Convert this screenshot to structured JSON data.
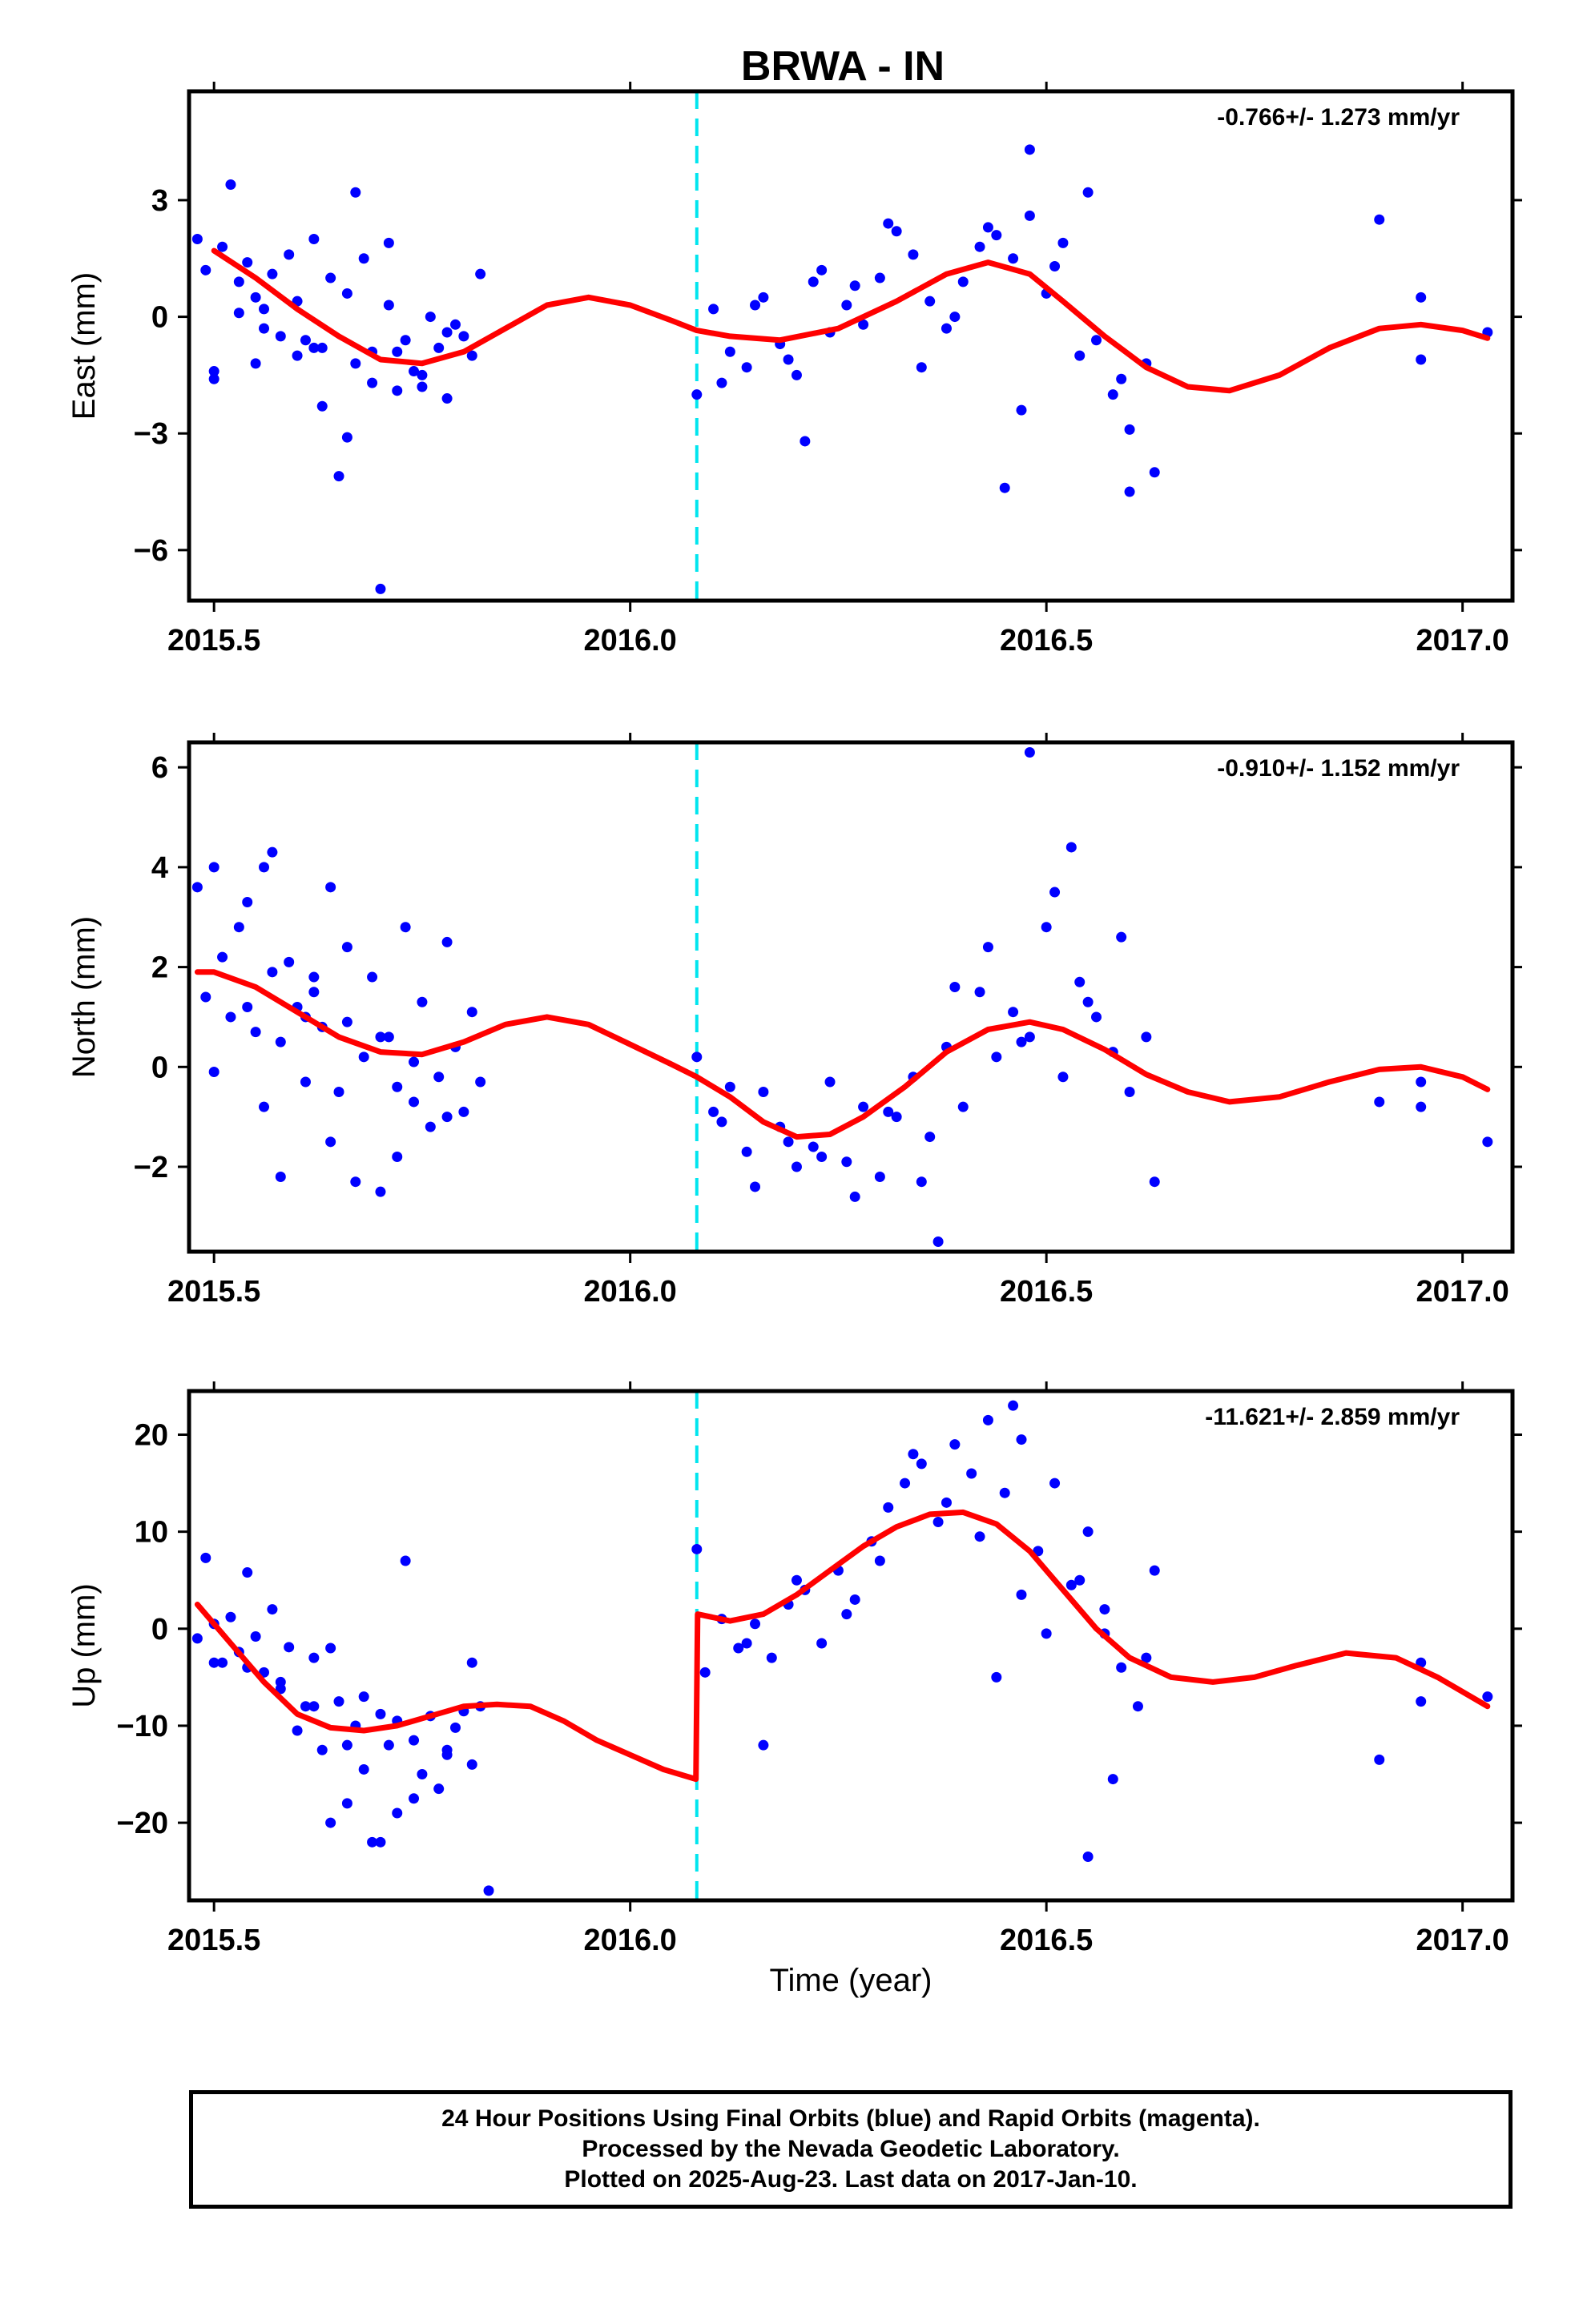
{
  "chart_data": {
    "type": "scatter",
    "title": "BRWA - IN",
    "xlabel": "Time (year)",
    "xlim": [
      2015.47,
      2017.06
    ],
    "x_ticks": [
      2015.5,
      2016.0,
      2016.5,
      2017.0
    ],
    "x_tick_labels": [
      "2015.5",
      "2016.0",
      "2016.5",
      "2017.0"
    ],
    "offset_epoch": 2016.08,
    "colors": {
      "data": "#0000ff",
      "model": "#ff0000",
      "offset": "#00e5ee"
    },
    "panels": [
      {
        "ylabel": "East (mm)",
        "ylim": [
          -7.3,
          5.8
        ],
        "y_ticks": [
          3,
          0,
          -3,
          -6
        ],
        "y_tick_labels": [
          "3",
          "0",
          "−3",
          "−6"
        ],
        "rate": "-0.766+/- 1.273 mm/yr",
        "model": {
          "x": [
            2015.5,
            2015.55,
            2015.6,
            2015.65,
            2015.7,
            2015.75,
            2015.8,
            2015.85,
            2015.9,
            2015.95,
            2016.0,
            2016.05,
            2016.08,
            2016.12,
            2016.18,
            2016.25,
            2016.32,
            2016.38,
            2016.43,
            2016.48,
            2016.52,
            2016.57,
            2016.62,
            2016.67,
            2016.72,
            2016.78,
            2016.84,
            2016.9,
            2016.95,
            2017.0,
            2017.03
          ],
          "y": [
            1.7,
            1.0,
            0.2,
            -0.5,
            -1.1,
            -1.2,
            -0.9,
            -0.3,
            0.3,
            0.5,
            0.3,
            -0.1,
            -0.35,
            -0.5,
            -0.6,
            -0.3,
            0.4,
            1.1,
            1.4,
            1.1,
            0.4,
            -0.5,
            -1.3,
            -1.8,
            -1.9,
            -1.5,
            -0.8,
            -0.3,
            -0.2,
            -0.35,
            -0.55
          ]
        },
        "points": {
          "x": [
            2015.48,
            2015.49,
            2015.5,
            2015.51,
            2015.52,
            2015.53,
            2015.54,
            2015.55,
            2015.56,
            2015.57,
            2015.58,
            2015.59,
            2015.6,
            2015.61,
            2015.62,
            2015.63,
            2015.64,
            2015.65,
            2015.66,
            2015.67,
            2015.68,
            2015.69,
            2015.7,
            2015.71,
            2015.72,
            2015.73,
            2015.74,
            2015.75,
            2015.76,
            2015.77,
            2015.78,
            2015.79,
            2015.8,
            2015.81,
            2015.82,
            2015.5,
            2015.53,
            2015.56,
            2015.6,
            2015.63,
            2015.66,
            2015.69,
            2015.72,
            2015.75,
            2015.78,
            2015.55,
            2015.62,
            2015.67,
            2015.71,
            2016.08,
            2016.1,
            2016.12,
            2016.14,
            2016.16,
            2016.18,
            2016.2,
            2016.22,
            2016.24,
            2016.26,
            2016.28,
            2016.3,
            2016.32,
            2016.34,
            2016.36,
            2016.38,
            2016.4,
            2016.42,
            2016.44,
            2016.46,
            2016.48,
            2016.5,
            2016.52,
            2016.54,
            2016.56,
            2016.58,
            2016.6,
            2016.62,
            2016.11,
            2016.15,
            2016.19,
            2016.23,
            2016.27,
            2016.31,
            2016.35,
            2016.39,
            2016.43,
            2016.47,
            2016.51,
            2016.55,
            2016.59,
            2016.63,
            2016.21,
            2016.45,
            2016.48,
            2016.6,
            2016.9,
            2016.95,
            2016.95,
            2017.03
          ],
          "y": [
            2.0,
            1.2,
            -1.6,
            1.8,
            3.4,
            0.9,
            1.4,
            -1.2,
            0.2,
            1.1,
            -0.5,
            1.6,
            0.4,
            -0.6,
            2.0,
            -0.8,
            1.0,
            -4.1,
            0.6,
            -1.2,
            1.5,
            -0.9,
            -7.0,
            0.3,
            -1.9,
            -0.6,
            -1.4,
            -1.8,
            0.0,
            -0.8,
            -2.1,
            -0.2,
            -0.5,
            -1.0,
            1.1,
            -1.4,
            0.1,
            -0.3,
            -1.0,
            -2.3,
            -3.1,
            -1.7,
            -0.9,
            -1.5,
            -0.4,
            0.5,
            -0.8,
            3.2,
            1.9,
            -2.0,
            0.2,
            -0.9,
            -1.3,
            0.5,
            -0.7,
            -1.5,
            0.9,
            -0.4,
            0.3,
            -0.2,
            1.0,
            2.2,
            1.6,
            0.4,
            -0.3,
            0.9,
            1.8,
            2.1,
            1.5,
            2.6,
            0.6,
            1.9,
            -1.0,
            -0.6,
            -2.0,
            -2.9,
            -1.2,
            -1.7,
            0.3,
            -1.1,
            1.2,
            0.8,
            2.4,
            -1.3,
            0.0,
            2.3,
            -2.4,
            1.3,
            3.2,
            -1.6,
            -4.0,
            -3.2,
            -4.4,
            4.3,
            -4.5,
            2.5,
            0.5,
            -1.1,
            -0.4
          ]
        }
      },
      {
        "ylabel": "North (mm)",
        "ylim": [
          -3.7,
          6.5
        ],
        "y_ticks": [
          6,
          4,
          2,
          0,
          -2
        ],
        "y_tick_labels": [
          "6",
          "4",
          "2",
          "0",
          "−2"
        ],
        "rate": "-0.910+/- 1.152 mm/yr",
        "model": {
          "x": [
            2015.48,
            2015.5,
            2015.55,
            2015.6,
            2015.65,
            2015.7,
            2015.75,
            2015.8,
            2015.85,
            2015.9,
            2015.95,
            2016.0,
            2016.05,
            2016.08,
            2016.12,
            2016.16,
            2016.2,
            2016.24,
            2016.28,
            2016.33,
            2016.38,
            2016.43,
            2016.48,
            2016.52,
            2016.57,
            2016.62,
            2016.67,
            2016.72,
            2016.78,
            2016.84,
            2016.9,
            2016.95,
            2017.0,
            2017.03
          ],
          "y": [
            1.9,
            1.9,
            1.6,
            1.1,
            0.6,
            0.3,
            0.25,
            0.5,
            0.85,
            1.0,
            0.85,
            0.45,
            0.05,
            -0.2,
            -0.6,
            -1.1,
            -1.4,
            -1.35,
            -1.0,
            -0.4,
            0.3,
            0.75,
            0.9,
            0.75,
            0.35,
            -0.15,
            -0.5,
            -0.7,
            -0.6,
            -0.3,
            -0.05,
            0.0,
            -0.2,
            -0.45
          ]
        },
        "points": {
          "x": [
            2015.48,
            2015.49,
            2015.5,
            2015.51,
            2015.52,
            2015.53,
            2015.54,
            2015.55,
            2015.56,
            2015.57,
            2015.58,
            2015.59,
            2015.6,
            2015.61,
            2015.62,
            2015.63,
            2015.64,
            2015.65,
            2015.66,
            2015.67,
            2015.68,
            2015.69,
            2015.7,
            2015.71,
            2015.72,
            2015.73,
            2015.74,
            2015.75,
            2015.76,
            2015.77,
            2015.78,
            2015.79,
            2015.8,
            2015.81,
            2015.82,
            2015.5,
            2015.54,
            2015.58,
            2015.62,
            2015.66,
            2015.7,
            2015.74,
            2015.78,
            2015.56,
            2015.64,
            2015.72,
            2015.57,
            2015.61,
            2016.08,
            2016.1,
            2016.12,
            2016.14,
            2016.16,
            2016.18,
            2016.2,
            2016.22,
            2016.24,
            2016.26,
            2016.28,
            2016.3,
            2016.32,
            2016.34,
            2016.36,
            2016.38,
            2016.4,
            2016.42,
            2016.44,
            2016.46,
            2016.48,
            2016.5,
            2016.52,
            2016.54,
            2016.56,
            2016.58,
            2016.6,
            2016.62,
            2016.11,
            2016.15,
            2016.19,
            2016.23,
            2016.27,
            2016.31,
            2016.35,
            2016.39,
            2016.43,
            2016.47,
            2016.51,
            2016.55,
            2016.59,
            2016.63,
            2016.37,
            2016.48,
            2016.53,
            2016.9,
            2016.95,
            2016.95,
            2017.03
          ],
          "y": [
            3.6,
            1.4,
            4.0,
            2.2,
            1.0,
            2.8,
            1.2,
            0.7,
            -0.8,
            1.9,
            0.5,
            2.1,
            1.2,
            -0.3,
            1.5,
            0.8,
            3.6,
            -0.5,
            0.9,
            -2.3,
            0.2,
            1.8,
            -2.5,
            0.6,
            -0.4,
            2.8,
            0.1,
            1.3,
            -1.2,
            -0.2,
            2.5,
            0.4,
            -0.9,
            1.1,
            -0.3,
            -0.1,
            3.3,
            -2.2,
            1.8,
            2.4,
            0.6,
            -0.7,
            -1.0,
            4.0,
            -1.5,
            -1.8,
            4.3,
            1.0,
            0.2,
            -0.9,
            -0.4,
            -1.7,
            -0.5,
            -1.2,
            -2.0,
            -1.6,
            -0.3,
            -1.9,
            -0.8,
            -2.2,
            -1.0,
            -0.2,
            -1.4,
            0.4,
            -0.8,
            1.5,
            0.2,
            1.1,
            0.6,
            2.8,
            -0.2,
            1.7,
            1.0,
            0.3,
            -0.5,
            0.6,
            -1.1,
            -2.4,
            -1.5,
            -1.8,
            -2.6,
            -0.9,
            -2.3,
            1.6,
            2.4,
            0.5,
            3.5,
            1.3,
            2.6,
            -2.3,
            -3.5,
            6.3,
            4.4,
            -0.7,
            -0.3,
            -0.8,
            -1.5
          ]
        }
      },
      {
        "ylabel": "Up (mm)",
        "ylim": [
          -28,
          24.5
        ],
        "y_ticks": [
          20,
          10,
          0,
          -10,
          -20
        ],
        "y_tick_labels": [
          "20",
          "10",
          "0",
          "−10",
          "−20"
        ],
        "rate": "-11.621+/- 2.859 mm/yr",
        "model": {
          "x": [
            2015.48,
            2015.52,
            2015.56,
            2015.6,
            2015.64,
            2015.68,
            2015.72,
            2015.76,
            2015.8,
            2015.84,
            2015.88,
            2015.92,
            2015.96,
            2016.0,
            2016.04,
            2016.079,
            2016.081,
            2016.12,
            2016.16,
            2016.2,
            2016.24,
            2016.28,
            2016.32,
            2016.36,
            2016.4,
            2016.44,
            2016.48,
            2016.52,
            2016.56,
            2016.6,
            2016.65,
            2016.7,
            2016.75,
            2016.8,
            2016.86,
            2016.92,
            2016.97,
            2017.03
          ],
          "y": [
            2.5,
            -1.5,
            -5.5,
            -8.8,
            -10.2,
            -10.5,
            -10.0,
            -9.0,
            -8.0,
            -7.8,
            -8.0,
            -9.5,
            -11.5,
            -13.0,
            -14.5,
            -15.5,
            1.5,
            0.8,
            1.5,
            3.5,
            6.0,
            8.5,
            10.5,
            11.8,
            12.0,
            10.8,
            8.0,
            4.0,
            0.0,
            -3.0,
            -5.0,
            -5.5,
            -5.0,
            -3.8,
            -2.5,
            -3.0,
            -5.0,
            -8.0
          ]
        },
        "points": {
          "x": [
            2015.48,
            2015.49,
            2015.5,
            2015.51,
            2015.52,
            2015.53,
            2015.54,
            2015.55,
            2015.56,
            2015.57,
            2015.58,
            2015.59,
            2015.6,
            2015.61,
            2015.62,
            2015.63,
            2015.64,
            2015.65,
            2015.66,
            2015.67,
            2015.68,
            2015.69,
            2015.7,
            2015.71,
            2015.72,
            2015.73,
            2015.74,
            2015.75,
            2015.76,
            2015.77,
            2015.78,
            2015.79,
            2015.8,
            2015.81,
            2015.82,
            2015.5,
            2015.54,
            2015.58,
            2015.62,
            2015.66,
            2015.7,
            2015.74,
            2015.78,
            2015.64,
            2015.68,
            2015.72,
            2015.83,
            2015.81,
            2016.08,
            2016.09,
            2016.11,
            2016.13,
            2016.15,
            2016.17,
            2016.19,
            2016.21,
            2016.23,
            2016.25,
            2016.27,
            2016.29,
            2016.31,
            2016.33,
            2016.35,
            2016.37,
            2016.39,
            2016.41,
            2016.43,
            2016.45,
            2016.47,
            2016.49,
            2016.51,
            2016.53,
            2016.55,
            2016.57,
            2016.59,
            2016.61,
            2016.63,
            2016.14,
            2016.2,
            2016.26,
            2016.3,
            2016.34,
            2016.38,
            2016.42,
            2016.46,
            2016.5,
            2016.54,
            2016.58,
            2016.62,
            2016.16,
            2016.44,
            2016.47,
            2016.55,
            2016.57,
            2016.9,
            2016.95,
            2016.95,
            2017.03
          ],
          "y": [
            -1.0,
            7.3,
            0.5,
            -3.5,
            1.2,
            -2.4,
            5.8,
            -0.8,
            -4.5,
            2.0,
            -6.2,
            -1.9,
            -10.5,
            -8.0,
            -3.0,
            -12.5,
            -20.0,
            -7.5,
            -18.0,
            -10.0,
            -14.5,
            -22.0,
            -8.8,
            -12.0,
            -9.5,
            7.0,
            -11.5,
            -15.0,
            -9.0,
            -16.5,
            -12.5,
            -10.2,
            -8.5,
            -14.0,
            -8.0,
            -3.5,
            -4.0,
            -5.5,
            -8.0,
            -12.0,
            -22.0,
            -17.5,
            -13.0,
            -2.0,
            -7.0,
            -19.0,
            -27.0,
            -3.5,
            8.2,
            -4.5,
            1.0,
            -2.0,
            0.5,
            -3.0,
            2.5,
            4.0,
            -1.5,
            6.0,
            3.0,
            9.0,
            12.5,
            15.0,
            17.0,
            11.0,
            19.0,
            16.0,
            21.5,
            14.0,
            19.5,
            8.0,
            15.0,
            4.5,
            10.0,
            2.0,
            -4.0,
            -8.0,
            6.0,
            -1.5,
            5.0,
            1.5,
            7.0,
            18.0,
            13.0,
            9.5,
            23.0,
            -0.5,
            5.0,
            -15.5,
            -3.0,
            -12.0,
            -5.0,
            3.5,
            -23.5,
            -0.5,
            -13.5,
            -7.5,
            -3.5,
            -7.0
          ]
        }
      }
    ]
  },
  "footer": {
    "line1": "24 Hour Positions Using Final Orbits (blue) and Rapid Orbits (magenta).",
    "line2": "Processed by the Nevada Geodetic Laboratory.",
    "line3": "Plotted on 2025-Aug-23. Last data on 2017-Jan-10."
  }
}
